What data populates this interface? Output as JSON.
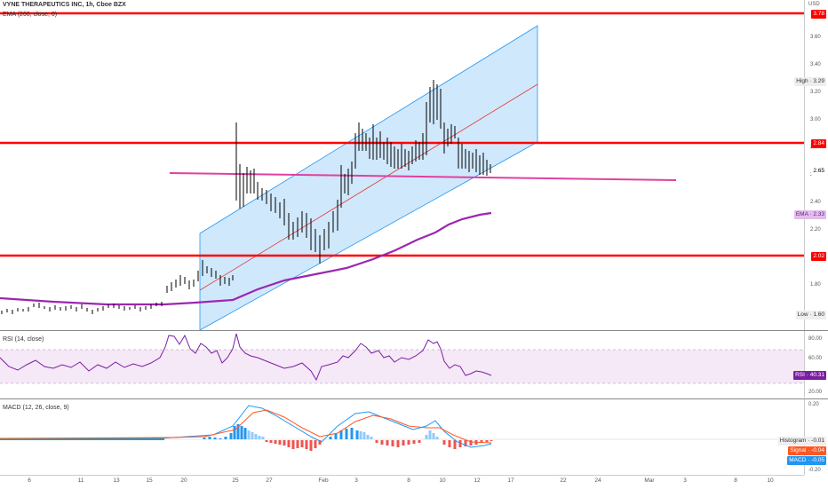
{
  "header": {
    "symbol_line": "VYNE THERAPEUTICS INC, 1h, Cboe BZX",
    "ema_legend": "EMA (200, close, 0)",
    "currency": "USD"
  },
  "price_axis": {
    "ticks": [
      "3.60",
      "3.40",
      "3.20",
      "3.00",
      "2.80",
      "2.60",
      "2.40",
      "2.20",
      "1.80"
    ],
    "labels": {
      "high": "High · 3.29",
      "level_top": "3.78",
      "level_mid": "2.84",
      "last": "2.65",
      "ema": "EMA · 2.33",
      "level_low": "2.02",
      "low": "Low · 1.60"
    }
  },
  "rsi": {
    "legend": "RSI (14, close)",
    "ticks": [
      "80.00",
      "60.00",
      "20.00"
    ],
    "label": "RSI · 40.31"
  },
  "macd": {
    "legend": "MACD (12, 26, close, 9)",
    "ticks": [
      "0.20",
      "-0.20"
    ],
    "histogram": "Histogram · -0.01",
    "signal": "Signal · -0.04",
    "macd": "MACD · -0.05"
  },
  "time_axis": [
    "6",
    "11",
    "13",
    "15",
    "20",
    "25",
    "27",
    "Feb",
    "3",
    "8",
    "10",
    "12",
    "17",
    "22",
    "24",
    "Mar",
    "3",
    "8",
    "10"
  ],
  "colors": {
    "support": "#ff0000",
    "ema": "#9c27b0",
    "channel": "#2196f3",
    "trend": "#e040a0",
    "rsi": "#7b1fa2",
    "macd": "#2196f3",
    "signal": "#ff5722"
  }
}
